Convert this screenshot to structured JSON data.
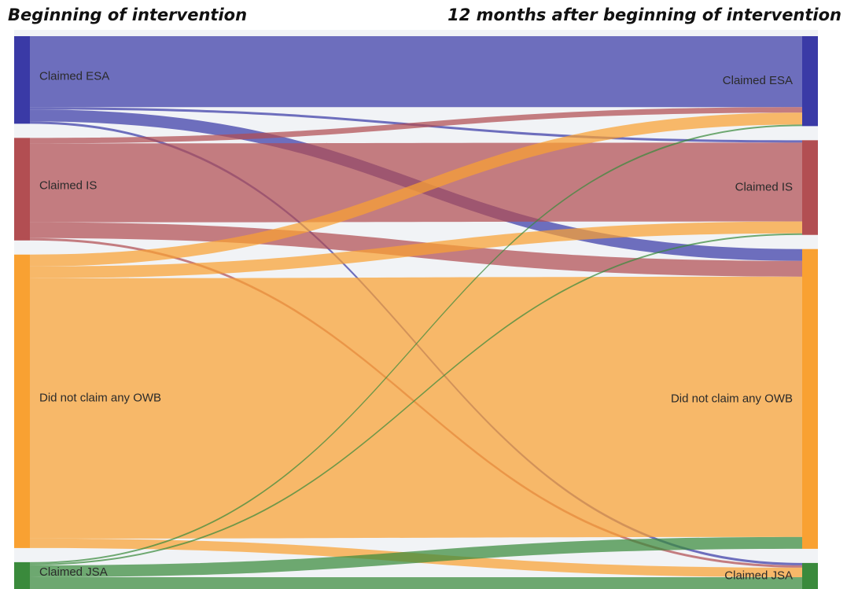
{
  "chart_data": {
    "type": "sankey",
    "column_titles": [
      "Beginning of intervention",
      "12 months after beginning of intervention"
    ],
    "nodes": [
      {
        "name": "Claimed ESA",
        "color": "#3a3aa6",
        "column": 0
      },
      {
        "name": "Claimed IS",
        "color": "#b24e52",
        "column": 0
      },
      {
        "name": "Did not claim any OWB",
        "color": "#f9a132",
        "column": 0
      },
      {
        "name": "Claimed JSA",
        "color": "#3a8a3c",
        "column": 0
      },
      {
        "name": "Claimed ESA",
        "color": "#3a3aa6",
        "column": 1
      },
      {
        "name": "Claimed IS",
        "color": "#b24e52",
        "column": 1
      },
      {
        "name": "Did not claim any OWB",
        "color": "#f9a132",
        "column": 1
      },
      {
        "name": "Claimed JSA",
        "color": "#3a8a3c",
        "column": 1
      }
    ],
    "links": [
      {
        "source": 0,
        "target": 4,
        "value": 90
      },
      {
        "source": 0,
        "target": 5,
        "value": 3
      },
      {
        "source": 0,
        "target": 6,
        "value": 15
      },
      {
        "source": 0,
        "target": 7,
        "value": 3
      },
      {
        "source": 1,
        "target": 4,
        "value": 7
      },
      {
        "source": 1,
        "target": 5,
        "value": 100
      },
      {
        "source": 1,
        "target": 6,
        "value": 20
      },
      {
        "source": 1,
        "target": 7,
        "value": 3
      },
      {
        "source": 2,
        "target": 4,
        "value": 15
      },
      {
        "source": 2,
        "target": 5,
        "value": 15
      },
      {
        "source": 2,
        "target": 6,
        "value": 330
      },
      {
        "source": 2,
        "target": 7,
        "value": 12
      },
      {
        "source": 3,
        "target": 4,
        "value": 2
      },
      {
        "source": 3,
        "target": 5,
        "value": 2
      },
      {
        "source": 3,
        "target": 6,
        "value": 15
      },
      {
        "source": 3,
        "target": 7,
        "value": 15
      }
    ]
  }
}
